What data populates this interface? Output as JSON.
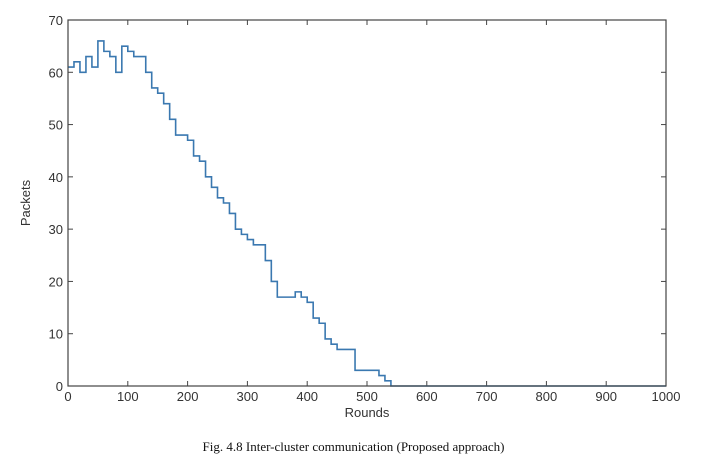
{
  "caption": "Fig. 4.8 Inter-cluster communication (Proposed approach)",
  "chart_data": {
    "type": "line",
    "title": "",
    "xlabel": "Rounds",
    "ylabel": "Packets",
    "xlim": [
      0,
      1000
    ],
    "ylim": [
      0,
      70
    ],
    "xticks": [
      0,
      100,
      200,
      300,
      400,
      500,
      600,
      700,
      800,
      900,
      1000
    ],
    "yticks": [
      0,
      10,
      20,
      30,
      40,
      50,
      60,
      70
    ],
    "grid": false,
    "series": [
      {
        "name": "Packets",
        "color": "#3a78b0",
        "x": [
          0,
          10,
          20,
          30,
          40,
          50,
          60,
          70,
          80,
          90,
          100,
          110,
          120,
          130,
          140,
          150,
          160,
          170,
          180,
          190,
          200,
          210,
          220,
          230,
          240,
          250,
          260,
          270,
          280,
          290,
          300,
          310,
          320,
          330,
          340,
          350,
          360,
          370,
          380,
          390,
          400,
          410,
          420,
          430,
          440,
          450,
          460,
          470,
          480,
          490,
          500,
          510,
          520,
          530,
          540,
          1000
        ],
        "y": [
          61,
          62,
          60,
          63,
          61,
          66,
          64,
          63,
          60,
          65,
          64,
          63,
          63,
          60,
          57,
          56,
          54,
          51,
          48,
          48,
          47,
          44,
          43,
          40,
          38,
          36,
          35,
          33,
          30,
          29,
          28,
          27,
          27,
          24,
          20,
          17,
          17,
          17,
          18,
          17,
          16,
          13,
          12,
          9,
          8,
          7,
          7,
          7,
          3,
          3,
          3,
          3,
          2,
          1,
          0,
          0
        ]
      }
    ]
  }
}
